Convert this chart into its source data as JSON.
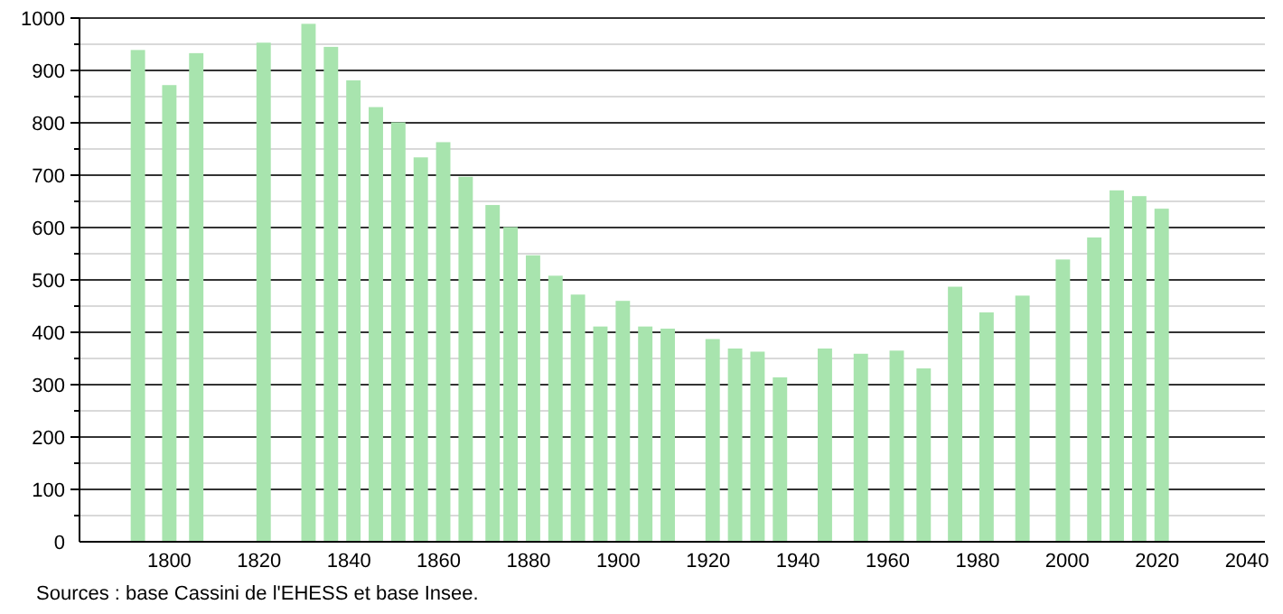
{
  "chart_data": {
    "type": "bar",
    "color": "#a8e4ae",
    "x": [
      1793,
      1800,
      1806,
      1821,
      1831,
      1836,
      1841,
      1846,
      1851,
      1856,
      1861,
      1866,
      1872,
      1876,
      1881,
      1886,
      1891,
      1896,
      1901,
      1906,
      1911,
      1921,
      1926,
      1931,
      1936,
      1946,
      1954,
      1962,
      1968,
      1975,
      1982,
      1990,
      1999,
      2006,
      2011,
      2016,
      2021
    ],
    "values": [
      939,
      872,
      933,
      953,
      989,
      945,
      881,
      830,
      801,
      734,
      763,
      697,
      643,
      601,
      547,
      508,
      472,
      411,
      460,
      411,
      407,
      387,
      369,
      363,
      314,
      369,
      359,
      365,
      331,
      487,
      438,
      470,
      539,
      581,
      671,
      660,
      636
    ],
    "xlim": [
      1780,
      2044
    ],
    "xticks": [
      1800,
      1820,
      1840,
      1860,
      1880,
      1900,
      1920,
      1940,
      1960,
      1980,
      2000,
      2020,
      2040
    ],
    "ylim": [
      0,
      1000
    ],
    "yticks": [
      0,
      {
        "value": 50,
        "label": null
      },
      100,
      {
        "value": 150,
        "label": null
      },
      200,
      {
        "value": 250,
        "label": null
      },
      300,
      {
        "value": 350,
        "label": null
      },
      400,
      {
        "value": 450,
        "label": null
      },
      500,
      {
        "value": 550,
        "label": null
      },
      600,
      {
        "value": 650,
        "label": null
      },
      700,
      {
        "value": 750,
        "label": null
      },
      800,
      {
        "value": 850,
        "label": null
      },
      900,
      {
        "value": 950,
        "label": null
      },
      1000
    ],
    "grid": "y",
    "annotations": [
      "Sources : base Cassini de l'EHESS et base Insee."
    ]
  }
}
